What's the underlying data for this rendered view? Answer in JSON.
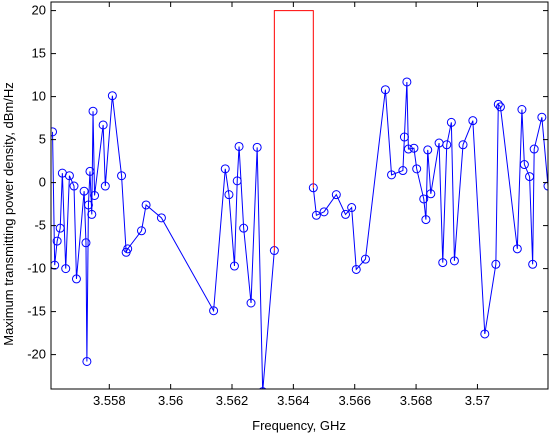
{
  "chart_data": {
    "type": "line",
    "title": "",
    "xlabel": "Frequency, GHz",
    "ylabel": "Maximum transmitting power density, dBm/Hz",
    "xlim": [
      3.5561,
      3.5723
    ],
    "ylim": [
      -24,
      21
    ],
    "xticks": [
      3.558,
      3.56,
      3.562,
      3.564,
      3.566,
      3.568,
      3.57
    ],
    "xtick_labels": [
      "3.558",
      "3.56",
      "3.562",
      "3.564",
      "3.566",
      "3.568",
      "3.57"
    ],
    "yticks": [
      -20,
      -15,
      -10,
      -5,
      0,
      5,
      10,
      15,
      20
    ],
    "ytick_labels": [
      "-20",
      "-15",
      "-10",
      "-5",
      "0",
      "5",
      "10",
      "15",
      "20"
    ],
    "grid": false,
    "legend": "none",
    "series": [
      {
        "color": "#0000ff",
        "marker": "circle",
        "points": [
          [
            3.55615,
            5.9
          ],
          [
            3.55622,
            -9.6
          ],
          [
            3.5563,
            -6.8
          ],
          [
            3.5564,
            -5.3
          ],
          [
            3.55647,
            1.1
          ],
          [
            3.55658,
            -10.0
          ],
          [
            3.5567,
            0.8
          ],
          [
            3.55685,
            -0.4
          ],
          [
            3.55693,
            -11.2
          ],
          [
            3.55718,
            -1.0
          ],
          [
            3.55724,
            -7.0
          ],
          [
            3.55727,
            -20.8
          ],
          [
            3.55732,
            -2.6
          ],
          [
            3.55737,
            1.3
          ],
          [
            3.55743,
            -3.7
          ],
          [
            3.55747,
            8.3
          ],
          [
            3.55752,
            -1.5
          ],
          [
            3.5578,
            6.7
          ],
          [
            3.55787,
            -0.4
          ],
          [
            3.5581,
            10.1
          ],
          [
            3.5584,
            0.8
          ],
          [
            3.55855,
            -8.1
          ],
          [
            3.5586,
            -7.7
          ],
          [
            3.55905,
            -5.6
          ],
          [
            3.5592,
            -2.6
          ],
          [
            3.5597,
            -4.1
          ],
          [
            3.5614,
            -14.9
          ],
          [
            3.56178,
            1.6
          ],
          [
            3.5619,
            -1.4
          ],
          [
            3.56208,
            -9.7
          ],
          [
            3.56217,
            0.2
          ],
          [
            3.56223,
            4.2
          ],
          [
            3.56238,
            -5.3
          ],
          [
            3.56262,
            -14.0
          ],
          [
            3.56282,
            4.1
          ],
          [
            3.563,
            -24.3
          ],
          [
            3.56338,
            -7.9
          ]
        ]
      },
      {
        "color": "#0000ff",
        "marker": "circle",
        "points": [
          [
            3.56465,
            -0.6
          ],
          [
            3.56475,
            -3.8
          ],
          [
            3.565,
            -3.4
          ],
          [
            3.5654,
            -1.4
          ],
          [
            3.5657,
            -3.7
          ],
          [
            3.5659,
            -2.9
          ],
          [
            3.56605,
            -10.1
          ],
          [
            3.56635,
            -8.9
          ],
          [
            3.567,
            10.8
          ],
          [
            3.5672,
            0.9
          ],
          [
            3.56757,
            1.4
          ],
          [
            3.56762,
            5.3
          ],
          [
            3.5677,
            11.7
          ],
          [
            3.56775,
            3.9
          ],
          [
            3.56793,
            4.0
          ],
          [
            3.56802,
            1.6
          ],
          [
            3.56825,
            -1.9
          ],
          [
            3.56832,
            -4.3
          ],
          [
            3.56838,
            3.8
          ],
          [
            3.56848,
            -1.3
          ],
          [
            3.56875,
            4.6
          ],
          [
            3.56887,
            -9.3
          ],
          [
            3.569,
            4.4
          ],
          [
            3.56915,
            7.0
          ],
          [
            3.56925,
            -9.1
          ],
          [
            3.56953,
            4.4
          ],
          [
            3.56985,
            7.2
          ],
          [
            3.57024,
            -17.6
          ],
          [
            3.5706,
            -9.5
          ],
          [
            3.57068,
            9.1
          ],
          [
            3.57075,
            8.8
          ],
          [
            3.5713,
            -7.7
          ],
          [
            3.57145,
            8.5
          ],
          [
            3.57153,
            2.1
          ],
          [
            3.5717,
            0.7
          ],
          [
            3.5718,
            -9.5
          ],
          [
            3.57185,
            3.9
          ],
          [
            3.5721,
            7.6
          ],
          [
            3.5723,
            -0.4
          ]
        ]
      },
      {
        "color": "#ff0000",
        "marker": "none",
        "points": [
          [
            3.56338,
            -7.9
          ],
          [
            3.56338,
            20.0
          ],
          [
            3.56465,
            20.0
          ],
          [
            3.56465,
            -0.6
          ]
        ]
      }
    ]
  }
}
